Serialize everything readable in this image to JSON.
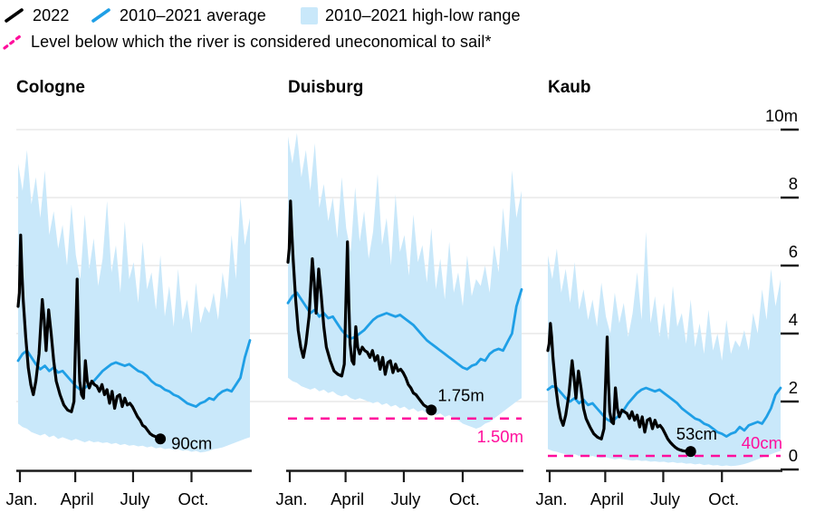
{
  "colors": {
    "current": "#000000",
    "average": "#1f9fe6",
    "range": "#c9e8fa",
    "threshold": "#ff0d9c",
    "grid": "#e4e4e4",
    "axis": "#1a1a1a"
  },
  "legend": {
    "row1": [
      {
        "id": "current",
        "label": "2022"
      },
      {
        "id": "average",
        "label": "2010–2021 average"
      },
      {
        "id": "range",
        "label": "2010–2021 high-low range"
      }
    ],
    "row2": {
      "id": "threshold",
      "label": "Level below which the river is considered uneconomical to sail*"
    }
  },
  "y_axis": {
    "ticks": [
      0,
      2,
      4,
      6,
      8,
      10
    ],
    "labels": [
      "0",
      "2",
      "4",
      "6",
      "8",
      "10m"
    ]
  },
  "x_axis": {
    "labels": [
      "Jan.",
      "April",
      "July",
      "Oct."
    ],
    "days": [
      0,
      90,
      181,
      273
    ]
  },
  "chart_data": {
    "type": "line",
    "unit": "m",
    "ylim": [
      0,
      10
    ],
    "x_range_days": 365,
    "weekly_step_days": 7,
    "series_names": [
      "2022",
      "2010–2021 average",
      "2010–2021 high-low range"
    ],
    "panels": [
      {
        "title": "Cologne",
        "threshold": null,
        "current_2022": {
          "days": [
            0,
            2,
            4,
            6,
            8,
            12,
            16,
            20,
            24,
            28,
            33,
            38,
            41,
            44,
            48,
            52,
            56,
            60,
            66,
            72,
            78,
            84,
            88,
            93,
            95,
            97,
            100,
            103,
            106,
            109,
            112,
            116,
            120,
            124,
            128,
            132,
            136,
            140,
            144,
            148,
            152,
            156,
            160,
            164,
            168,
            172,
            176,
            180,
            184,
            188,
            192,
            196,
            200,
            204,
            208,
            212,
            216,
            220,
            224
          ],
          "values": [
            4.8,
            5.2,
            6.9,
            5.8,
            5.0,
            3.9,
            3.0,
            2.5,
            2.2,
            2.6,
            3.4,
            5.0,
            4.4,
            3.5,
            4.7,
            4.0,
            3.2,
            2.6,
            2.2,
            1.9,
            1.75,
            1.7,
            2.0,
            5.6,
            3.8,
            2.6,
            2.2,
            2.1,
            3.2,
            2.6,
            2.4,
            2.6,
            2.5,
            2.45,
            2.3,
            2.5,
            2.2,
            2.35,
            1.95,
            2.3,
            1.8,
            2.15,
            2.2,
            1.85,
            2.1,
            1.9,
            1.95,
            1.85,
            1.7,
            1.55,
            1.45,
            1.3,
            1.25,
            1.15,
            1.05,
            1.0,
            0.97,
            0.93,
            0.9
          ],
          "end_label": "90cm",
          "end_value": 0.9,
          "end_label_side": "right"
        },
        "average_2010_2021": [
          3.2,
          3.4,
          3.5,
          3.3,
          3.1,
          2.95,
          3.05,
          2.9,
          3.0,
          2.85,
          2.9,
          2.75,
          2.6,
          2.45,
          2.35,
          2.4,
          2.5,
          2.6,
          2.75,
          2.9,
          3.0,
          3.1,
          3.15,
          3.1,
          3.05,
          3.1,
          3.0,
          2.9,
          2.85,
          2.75,
          2.6,
          2.5,
          2.45,
          2.35,
          2.3,
          2.2,
          2.15,
          2.05,
          1.95,
          1.9,
          1.85,
          1.95,
          2.0,
          2.1,
          2.05,
          2.2,
          2.3,
          2.35,
          2.3,
          2.5,
          2.7,
          3.3,
          3.8
        ],
        "range_high": [
          9.0,
          8.2,
          9.4,
          7.8,
          8.6,
          7.4,
          8.8,
          6.9,
          7.6,
          6.5,
          7.2,
          6.0,
          7.8,
          6.3,
          5.6,
          7.5,
          5.9,
          6.8,
          5.4,
          6.2,
          7.9,
          5.8,
          6.6,
          5.2,
          7.3,
          5.6,
          6.1,
          4.9,
          6.7,
          5.3,
          5.8,
          4.7,
          6.3,
          4.5,
          5.4,
          4.2,
          5.9,
          4.4,
          5.0,
          4.0,
          5.5,
          4.3,
          4.8,
          4.6,
          5.2,
          4.4,
          5.8,
          5.0,
          6.9,
          5.6,
          8.0,
          6.6,
          7.4
        ],
        "range_low": [
          1.35,
          1.25,
          1.2,
          1.1,
          1.05,
          1.0,
          1.05,
          0.95,
          1.0,
          0.9,
          0.95,
          0.9,
          0.85,
          0.9,
          0.85,
          0.8,
          0.85,
          0.8,
          0.82,
          0.78,
          0.8,
          0.75,
          0.78,
          0.72,
          0.75,
          0.7,
          0.72,
          0.68,
          0.7,
          0.65,
          0.68,
          0.62,
          0.65,
          0.6,
          0.62,
          0.58,
          0.6,
          0.55,
          0.57,
          0.52,
          0.55,
          0.5,
          0.52,
          0.55,
          0.6,
          0.62,
          0.65,
          0.7,
          0.75,
          0.8,
          0.85,
          0.9,
          0.95
        ]
      },
      {
        "title": "Duisburg",
        "threshold": {
          "value": 1.5,
          "label": "1.50m",
          "label_side": "below"
        },
        "current_2022": {
          "days": [
            0,
            2,
            4,
            6,
            8,
            12,
            16,
            20,
            24,
            28,
            33,
            38,
            41,
            44,
            48,
            52,
            56,
            60,
            66,
            72,
            78,
            84,
            88,
            93,
            95,
            97,
            100,
            103,
            106,
            109,
            112,
            116,
            120,
            124,
            128,
            132,
            136,
            140,
            144,
            148,
            152,
            156,
            160,
            164,
            168,
            172,
            176,
            180,
            184,
            188,
            192,
            196,
            200,
            204,
            208,
            212,
            216,
            220,
            224
          ],
          "values": [
            6.1,
            6.5,
            7.9,
            7.0,
            6.2,
            5.0,
            4.1,
            3.6,
            3.3,
            3.7,
            4.5,
            6.2,
            5.5,
            4.6,
            5.9,
            5.1,
            4.2,
            3.6,
            3.2,
            2.9,
            2.8,
            2.75,
            3.1,
            6.7,
            4.9,
            3.7,
            3.2,
            3.1,
            4.2,
            3.6,
            3.4,
            3.6,
            3.5,
            3.45,
            3.3,
            3.5,
            3.2,
            3.35,
            2.95,
            3.3,
            2.8,
            3.15,
            3.2,
            2.85,
            3.1,
            2.9,
            2.95,
            2.85,
            2.7,
            2.5,
            2.4,
            2.25,
            2.2,
            2.1,
            2.0,
            1.9,
            1.85,
            1.8,
            1.75
          ],
          "end_label": "1.75m",
          "end_value": 1.75,
          "end_label_side": "above-right"
        },
        "average_2010_2021": [
          4.9,
          5.1,
          5.2,
          5.0,
          4.8,
          4.6,
          4.7,
          4.5,
          4.6,
          4.45,
          4.5,
          4.3,
          4.1,
          3.95,
          3.85,
          3.9,
          4.0,
          4.1,
          4.25,
          4.4,
          4.5,
          4.55,
          4.6,
          4.55,
          4.5,
          4.55,
          4.45,
          4.35,
          4.25,
          4.1,
          3.95,
          3.8,
          3.7,
          3.6,
          3.5,
          3.4,
          3.3,
          3.2,
          3.1,
          3.0,
          2.95,
          3.05,
          3.1,
          3.25,
          3.2,
          3.4,
          3.5,
          3.55,
          3.5,
          3.75,
          4.0,
          4.8,
          5.3
        ],
        "range_high": [
          9.8,
          9.0,
          9.9,
          8.6,
          9.4,
          8.2,
          9.6,
          7.7,
          8.4,
          7.3,
          8.0,
          6.8,
          8.6,
          7.1,
          6.4,
          8.3,
          6.7,
          7.6,
          6.2,
          7.0,
          8.7,
          6.6,
          7.4,
          6.0,
          8.1,
          6.4,
          6.9,
          5.7,
          7.5,
          6.1,
          6.6,
          5.5,
          7.1,
          5.3,
          6.2,
          5.0,
          6.7,
          5.2,
          5.8,
          4.8,
          6.3,
          5.1,
          5.6,
          5.4,
          6.0,
          5.2,
          6.6,
          5.8,
          7.7,
          6.4,
          8.8,
          7.4,
          8.2
        ],
        "range_low": [
          2.7,
          2.6,
          2.55,
          2.45,
          2.4,
          2.35,
          2.4,
          2.3,
          2.35,
          2.25,
          2.3,
          2.2,
          2.15,
          2.2,
          2.1,
          2.05,
          2.1,
          2.05,
          2.0,
          1.95,
          2.0,
          1.9,
          1.95,
          1.85,
          1.9,
          1.8,
          1.85,
          1.75,
          1.8,
          1.7,
          1.75,
          1.65,
          1.7,
          1.6,
          1.65,
          1.55,
          1.6,
          1.5,
          1.45,
          1.35,
          1.3,
          1.25,
          1.2,
          1.25,
          1.35,
          1.4,
          1.5,
          1.6,
          1.7,
          1.8,
          1.9,
          2.0,
          2.1
        ]
      },
      {
        "title": "Kaub",
        "threshold": {
          "value": 0.4,
          "label": "40cm",
          "label_side": "above"
        },
        "current_2022": {
          "days": [
            0,
            2,
            4,
            6,
            8,
            12,
            16,
            20,
            24,
            28,
            33,
            38,
            41,
            44,
            48,
            52,
            56,
            60,
            66,
            72,
            78,
            84,
            88,
            93,
            95,
            97,
            100,
            103,
            106,
            109,
            112,
            116,
            120,
            124,
            128,
            132,
            136,
            140,
            144,
            148,
            152,
            156,
            160,
            164,
            168,
            172,
            176,
            180,
            184,
            188,
            192,
            196,
            200,
            204,
            208,
            212,
            216,
            220,
            224
          ],
          "values": [
            3.5,
            3.7,
            4.3,
            3.9,
            3.3,
            2.5,
            1.9,
            1.5,
            1.3,
            1.6,
            2.2,
            3.2,
            2.7,
            2.1,
            2.9,
            2.4,
            1.8,
            1.5,
            1.25,
            1.05,
            0.95,
            0.9,
            1.2,
            3.9,
            2.6,
            1.7,
            1.4,
            1.35,
            2.4,
            1.8,
            1.55,
            1.75,
            1.7,
            1.65,
            1.5,
            1.7,
            1.45,
            1.6,
            1.25,
            1.55,
            1.1,
            1.45,
            1.5,
            1.2,
            1.45,
            1.25,
            1.3,
            1.2,
            1.05,
            0.9,
            0.8,
            0.72,
            0.65,
            0.6,
            0.57,
            0.55,
            0.54,
            0.53,
            0.53
          ],
          "end_label": "53cm",
          "end_value": 0.53,
          "end_label_side": "above"
        },
        "average_2010_2021": [
          2.35,
          2.45,
          2.4,
          2.25,
          2.1,
          2.0,
          2.1,
          1.95,
          2.05,
          1.9,
          1.95,
          1.8,
          1.65,
          1.5,
          1.42,
          1.48,
          1.6,
          1.75,
          1.95,
          2.1,
          2.25,
          2.35,
          2.4,
          2.35,
          2.3,
          2.35,
          2.25,
          2.15,
          2.05,
          1.95,
          1.8,
          1.7,
          1.6,
          1.5,
          1.45,
          1.35,
          1.3,
          1.2,
          1.1,
          1.05,
          0.97,
          1.05,
          1.1,
          1.25,
          1.15,
          1.3,
          1.35,
          1.4,
          1.35,
          1.55,
          1.8,
          2.2,
          2.4
        ],
        "range_high": [
          6.3,
          5.6,
          6.5,
          5.2,
          5.9,
          4.9,
          6.1,
          4.7,
          5.3,
          4.4,
          5.0,
          4.2,
          5.5,
          4.5,
          4.0,
          5.2,
          4.3,
          4.9,
          3.9,
          4.6,
          5.8,
          4.4,
          7.0,
          4.3,
          5.1,
          3.9,
          4.9,
          3.8,
          5.4,
          4.2,
          4.6,
          3.7,
          5.0,
          3.6,
          4.3,
          3.4,
          4.7,
          3.5,
          4.0,
          3.2,
          4.4,
          3.4,
          3.8,
          3.6,
          4.1,
          3.5,
          4.6,
          4.0,
          5.3,
          4.4,
          5.9,
          4.8,
          5.6
        ],
        "range_low": [
          0.6,
          0.55,
          0.52,
          0.48,
          0.45,
          0.42,
          0.45,
          0.4,
          0.42,
          0.38,
          0.4,
          0.36,
          0.34,
          0.36,
          0.33,
          0.3,
          0.32,
          0.3,
          0.28,
          0.26,
          0.28,
          0.25,
          0.26,
          0.23,
          0.24,
          0.22,
          0.23,
          0.2,
          0.22,
          0.19,
          0.2,
          0.17,
          0.18,
          0.15,
          0.17,
          0.13,
          0.15,
          0.12,
          0.13,
          0.1,
          0.12,
          0.1,
          0.11,
          0.13,
          0.16,
          0.2,
          0.25,
          0.3,
          0.35,
          0.4,
          0.45,
          0.5,
          0.55
        ]
      }
    ]
  }
}
